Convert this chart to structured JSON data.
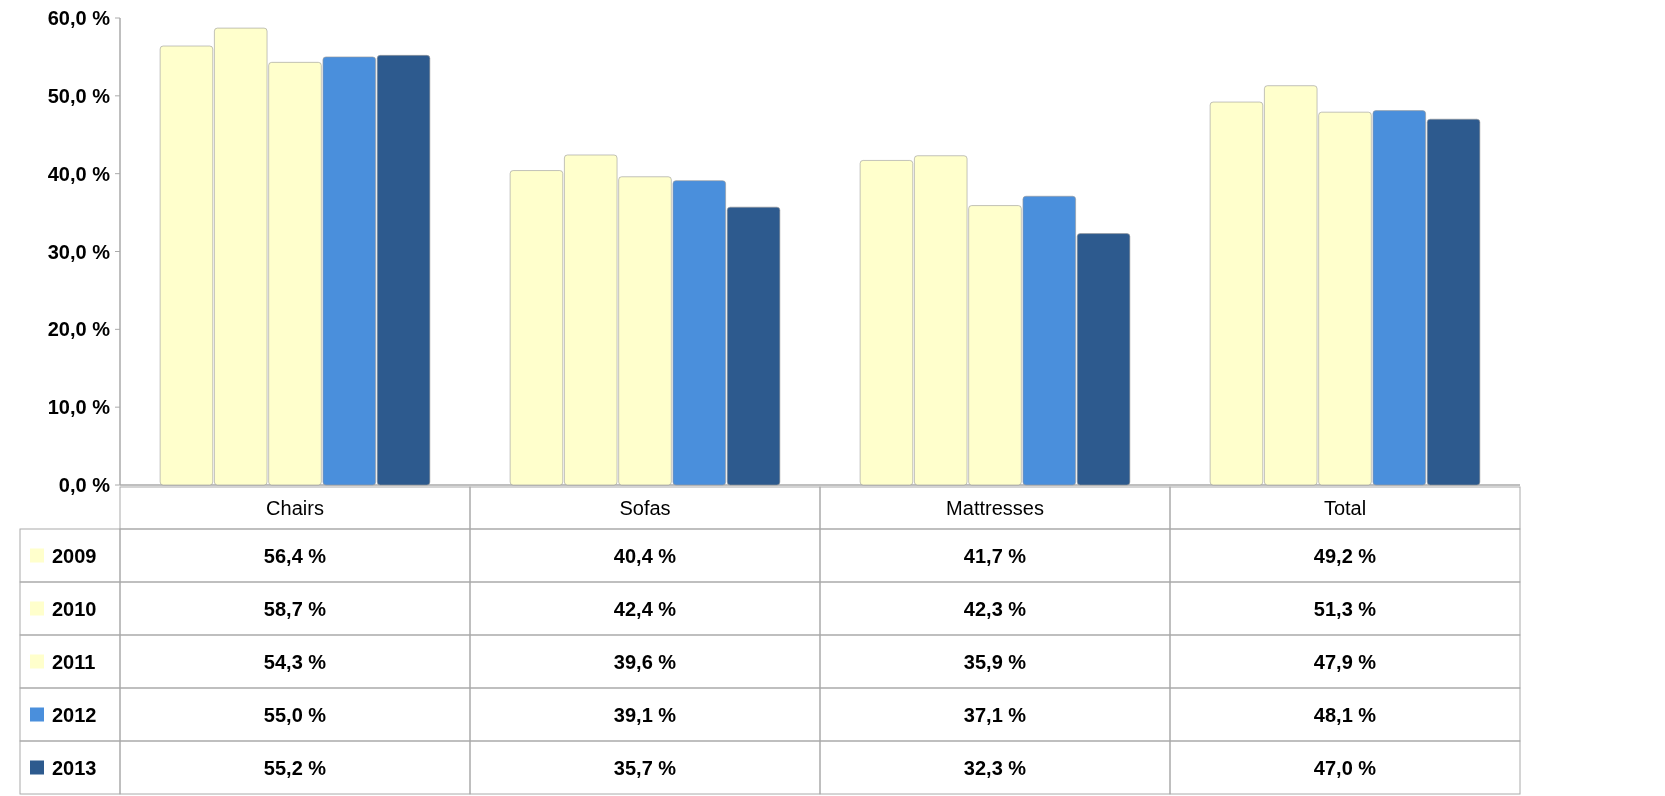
{
  "chart_data": {
    "type": "bar",
    "categories": [
      "Chairs",
      "Sofas",
      "Mattresses",
      "Total"
    ],
    "series": [
      {
        "name": "2009",
        "color": "#ffffcc",
        "values": [
          56.4,
          40.4,
          41.7,
          49.2
        ],
        "value_labels": [
          "56,4 %",
          "40,4 %",
          "41,7 %",
          "49,2 %"
        ]
      },
      {
        "name": "2010",
        "color": "#ffffcc",
        "values": [
          58.7,
          42.4,
          42.3,
          51.3
        ],
        "value_labels": [
          "58,7 %",
          "42,4 %",
          "42,3 %",
          "51,3 %"
        ]
      },
      {
        "name": "2011",
        "color": "#ffffcc",
        "values": [
          54.3,
          39.6,
          35.9,
          47.9
        ],
        "value_labels": [
          "54,3 %",
          "39,6 %",
          "35,9 %",
          "47,9 %"
        ]
      },
      {
        "name": "2012",
        "color": "#4a8fdc",
        "values": [
          55.0,
          39.1,
          37.1,
          48.1
        ],
        "value_labels": [
          "55,0 %",
          "39,1 %",
          "37,1 %",
          "48,1 %"
        ]
      },
      {
        "name": "2013",
        "color": "#2d5a8e",
        "values": [
          55.2,
          35.7,
          32.3,
          47.0
        ],
        "value_labels": [
          "55,2 %",
          "35,7 %",
          "32,3 %",
          "47,0 %"
        ]
      }
    ],
    "ylim": [
      0,
      60
    ],
    "yticks": [
      {
        "value": 0,
        "label": "0,0 %"
      },
      {
        "value": 10,
        "label": "10,0 %"
      },
      {
        "value": 20,
        "label": "20,0 %"
      },
      {
        "value": 30,
        "label": "30,0 %"
      },
      {
        "value": 40,
        "label": "40,0 %"
      },
      {
        "value": 50,
        "label": "50,0 %"
      },
      {
        "value": 60,
        "label": "60,0 %"
      }
    ],
    "grid": false,
    "legend": "bottom"
  }
}
